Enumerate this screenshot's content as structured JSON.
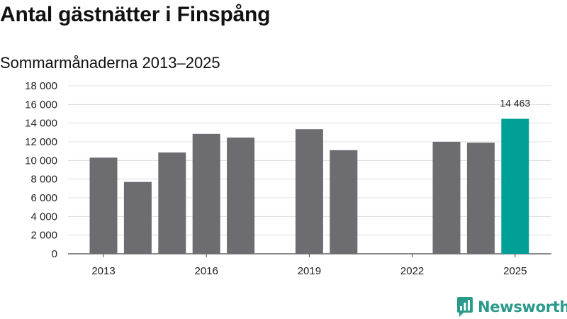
{
  "title": "Antal gästnätter i Finspång",
  "subtitle": "Sommarmånaderna 2013–2025",
  "brand": {
    "name": "Newsworthy",
    "icon": "newsworthy-logo-icon",
    "color": "#2a9a8a"
  },
  "chart_data": {
    "type": "bar",
    "categories": [
      "2013",
      "2014",
      "2015",
      "2016",
      "2017",
      "2018",
      "2019",
      "2020",
      "2021",
      "2022",
      "2023",
      "2024",
      "2025"
    ],
    "values": [
      10300,
      7700,
      10850,
      12850,
      12450,
      null,
      13350,
      11100,
      null,
      null,
      12000,
      11900,
      14463
    ],
    "ylim": [
      0,
      18000
    ],
    "yticks": [
      0,
      2000,
      4000,
      6000,
      8000,
      10000,
      12000,
      14000,
      16000,
      18000
    ],
    "ytick_labels": [
      "0",
      "2 000",
      "4 000",
      "6 000",
      "8 000",
      "10 000",
      "12 000",
      "14 000",
      "16 000",
      "18 000"
    ],
    "xticks_shown": [
      "2013",
      "2016",
      "2019",
      "2022",
      "2025"
    ],
    "annotations": [
      {
        "category": "2025",
        "text": "14 463"
      }
    ],
    "grid": true,
    "colors": {
      "bar": "#6d6c71",
      "highlight": "#00a096",
      "grid": "#dddddd",
      "axis": "#444444"
    },
    "highlight_category": "2025"
  }
}
